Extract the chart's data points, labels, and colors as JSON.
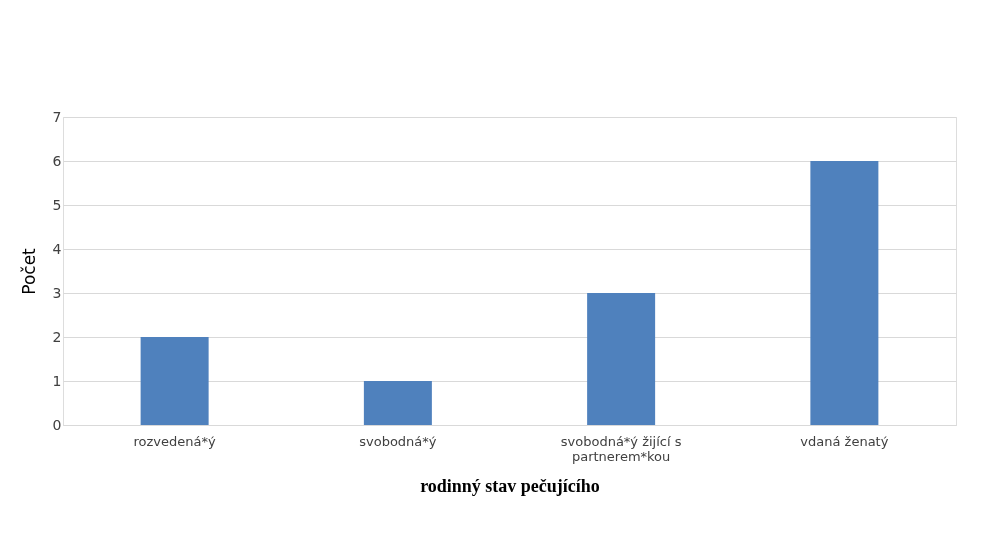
{
  "chart_data": {
    "type": "bar",
    "xlabel": "rodinný stav pečujícího",
    "ylabel": "Počet",
    "categories": [
      "rozvedená*ý",
      "svobodná*ý",
      "svobodná*ý žijící s partnerem*kou",
      "vdaná ženatý"
    ],
    "values": [
      2,
      1,
      3,
      6
    ],
    "color": "#4f81bd",
    "ylim": [
      0,
      7
    ],
    "yticks": [
      0,
      1,
      2,
      3,
      4,
      5,
      6,
      7
    ],
    "grid": "y"
  }
}
